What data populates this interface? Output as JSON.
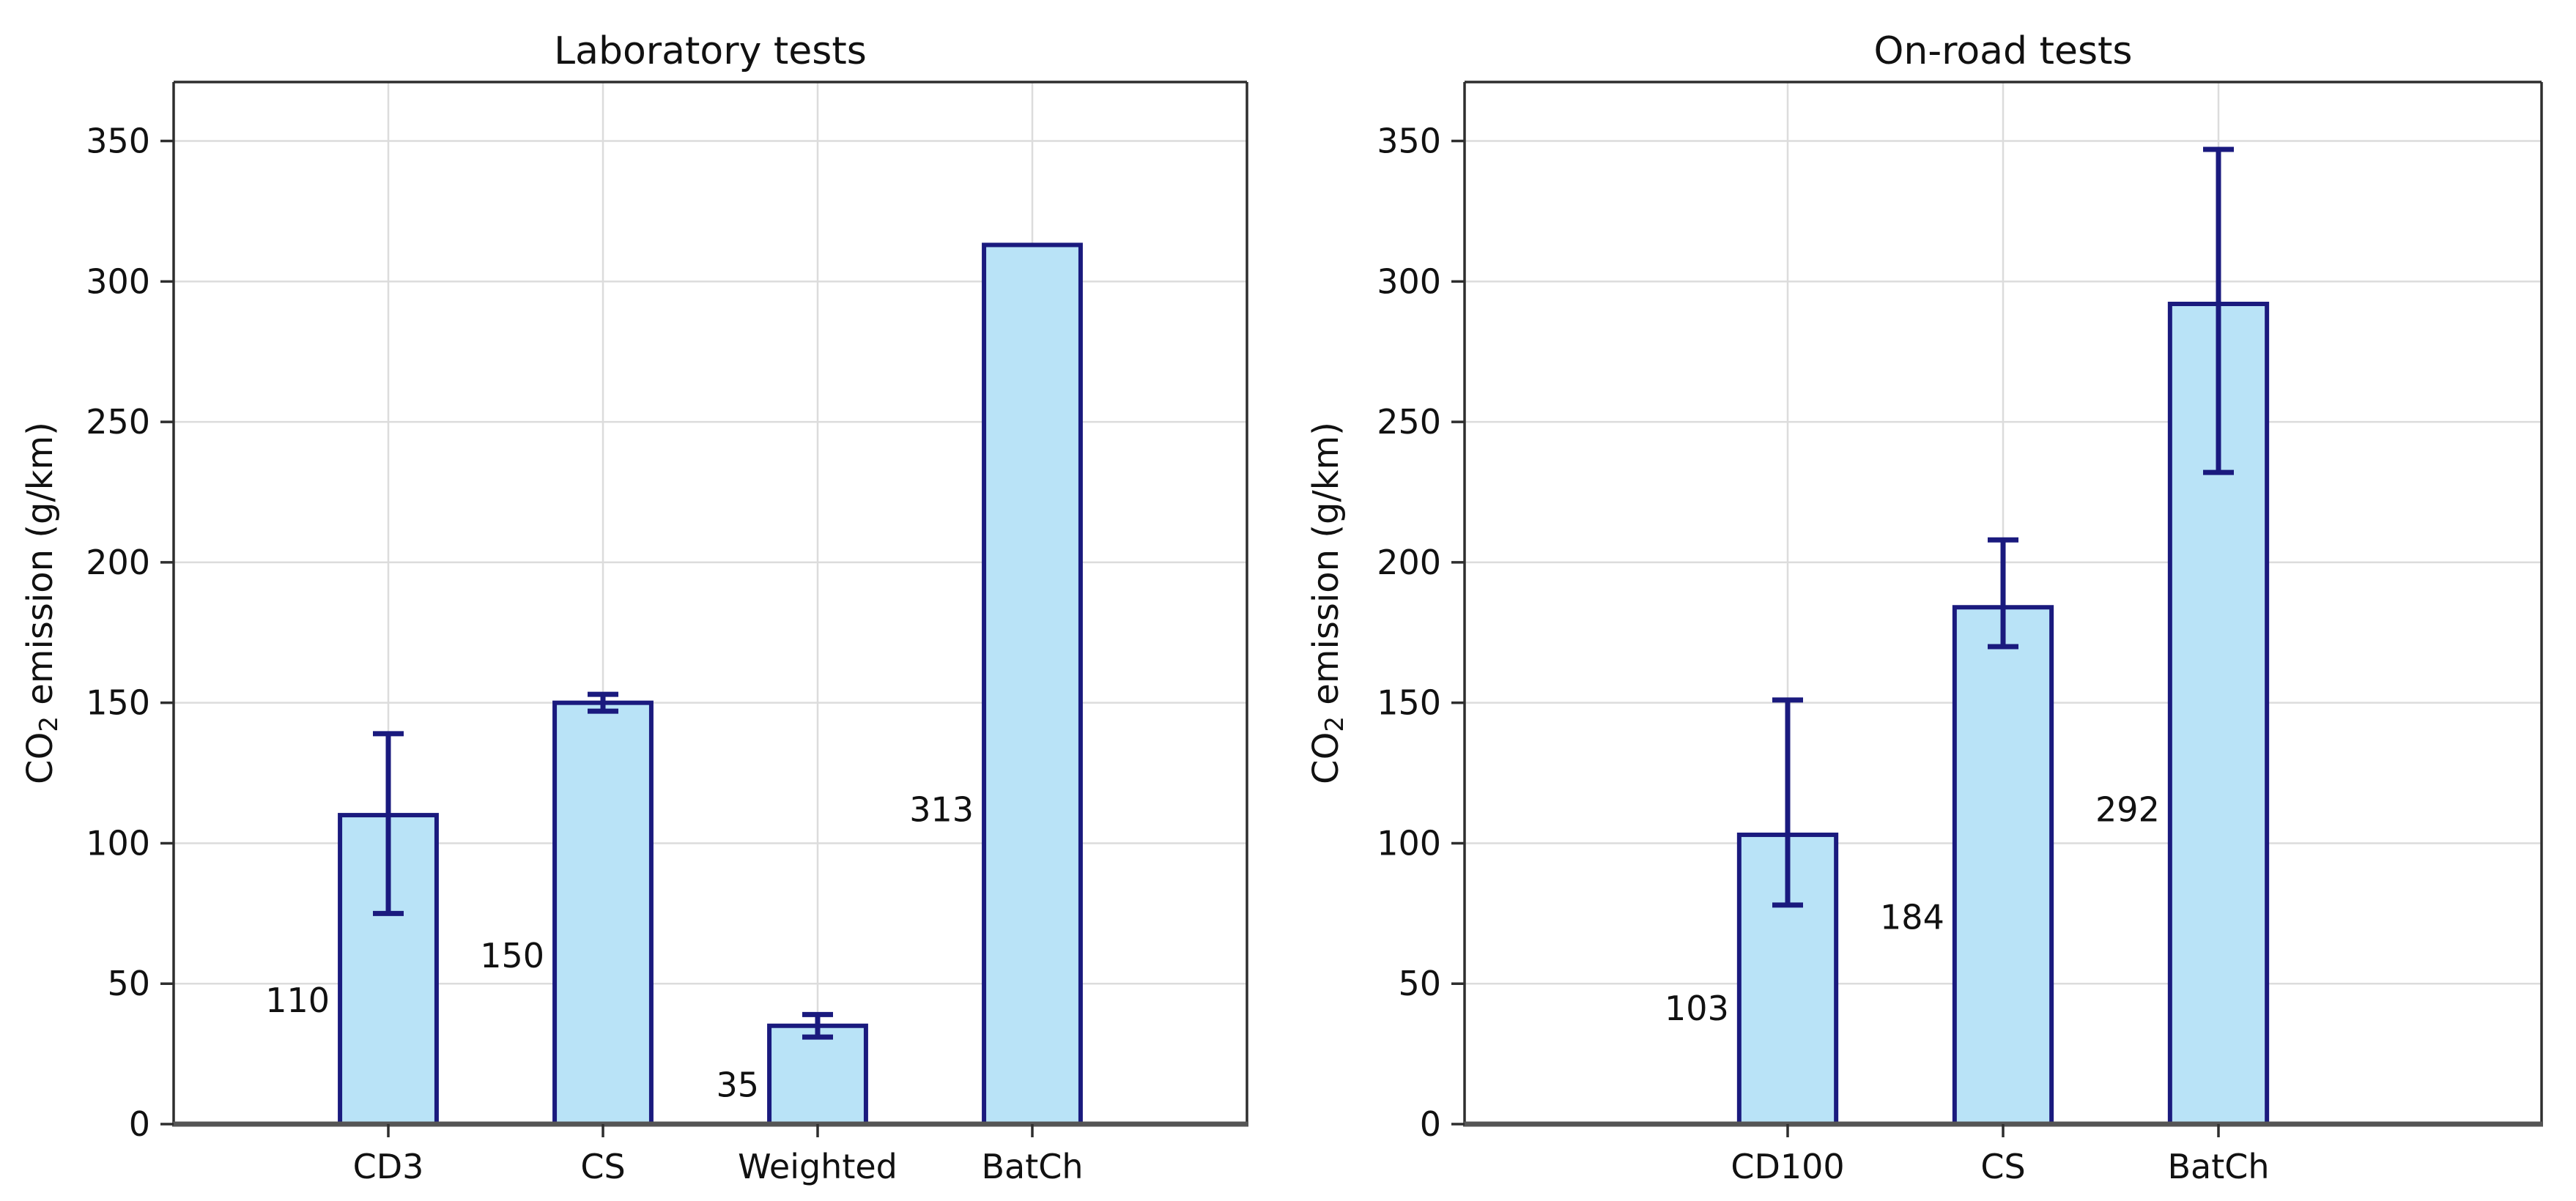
{
  "figure": {
    "description": "Two side-by-side bar charts of CO2 emission test results with error bars",
    "background": "#ffffff"
  },
  "colors": {
    "bar_fill": "#b9e3f7",
    "bar_edge": "#1a1a7e",
    "error_bar": "#1a1a7e",
    "grid": "#dcdcdc",
    "spine": "#2e2e2e",
    "baseline": "#555555",
    "text": "#111111"
  },
  "chart_data": [
    {
      "type": "bar",
      "title": "Laboratory tests",
      "xlabel": "",
      "ylabel": "CO₂ emission (g/km)",
      "categories": [
        "CD3",
        "CS",
        "Weighted",
        "BatCh"
      ],
      "values": [
        110,
        150,
        35,
        313
      ],
      "error_plus": [
        29,
        3,
        4,
        0
      ],
      "error_minus": [
        35,
        3,
        4,
        0
      ],
      "bar_value_labels": [
        "110",
        "150",
        "35",
        "313"
      ],
      "yticks": [
        0,
        50,
        100,
        150,
        200,
        250,
        300,
        350
      ],
      "ylim": [
        0,
        371
      ],
      "grid": true,
      "legend_position": "none"
    },
    {
      "type": "bar",
      "title": "On-road tests",
      "xlabel": "",
      "ylabel": "CO₂ emission (g/km)",
      "categories": [
        "CD100",
        "CS",
        "BatCh"
      ],
      "values": [
        103,
        184,
        292
      ],
      "error_plus": [
        48,
        24,
        55
      ],
      "error_minus": [
        25,
        14,
        60
      ],
      "bar_value_labels": [
        "103",
        "184",
        "292"
      ],
      "yticks": [
        0,
        50,
        100,
        150,
        200,
        250,
        300,
        350
      ],
      "ylim": [
        0,
        371
      ],
      "grid": true,
      "legend_position": "none"
    }
  ]
}
